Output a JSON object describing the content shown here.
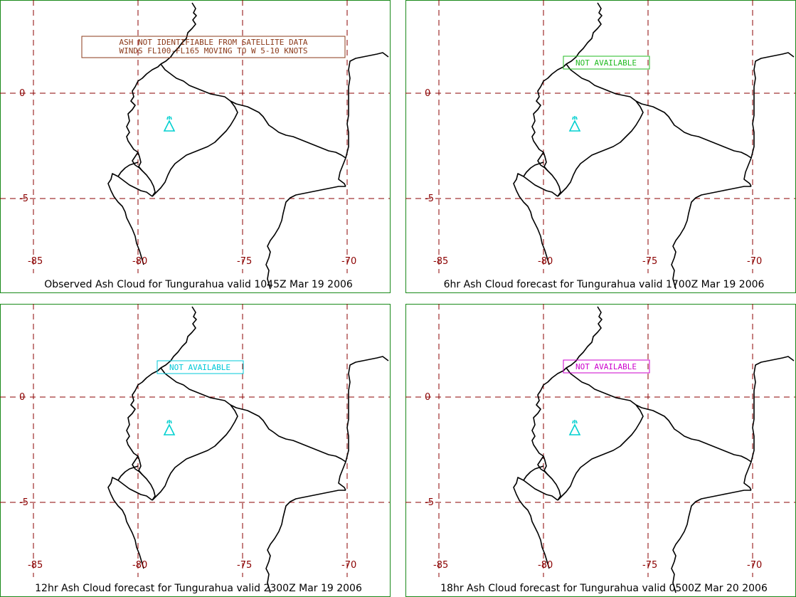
{
  "colors": {
    "frame": "#1a8a1a",
    "grid": "#8b0000",
    "coast": "#000000",
    "volcano": "#00d0d0"
  },
  "axes": {
    "lon_labels": [
      "-85",
      "-80",
      "-75",
      "-70"
    ],
    "lat_labels": [
      "0",
      "-5"
    ]
  },
  "panels": [
    {
      "title": "Observed Ash Cloud for Tungurahua valid 1045Z Mar 19 2006",
      "note_lines": [
        "ASH NOT IDENTIFIABLE FROM SATELLITE DATA",
        "WINDS FL100-FL165 MOVING TO W 5-10 KNOTS"
      ],
      "note_color": "#8b3a1a",
      "volcano_icon": "volcano-icon"
    },
    {
      "title": "6hr Ash Cloud forecast for Tungurahua valid 1700Z Mar 19 2006",
      "note_lines": [
        "NOT AVAILABLE"
      ],
      "note_color": "#22bb22",
      "volcano_icon": "volcano-icon"
    },
    {
      "title": "12hr Ash Cloud forecast for Tungurahua valid 2300Z Mar 19 2006",
      "note_lines": [
        "NOT AVAILABLE"
      ],
      "note_color": "#00c8d8",
      "volcano_icon": "volcano-icon"
    },
    {
      "title": "18hr Ash Cloud forecast for Tungurahua valid 0500Z Mar 20 2006",
      "note_lines": [
        "NOT AVAILABLE"
      ],
      "note_color": "#cc00cc",
      "volcano_icon": "volcano-icon"
    }
  ]
}
